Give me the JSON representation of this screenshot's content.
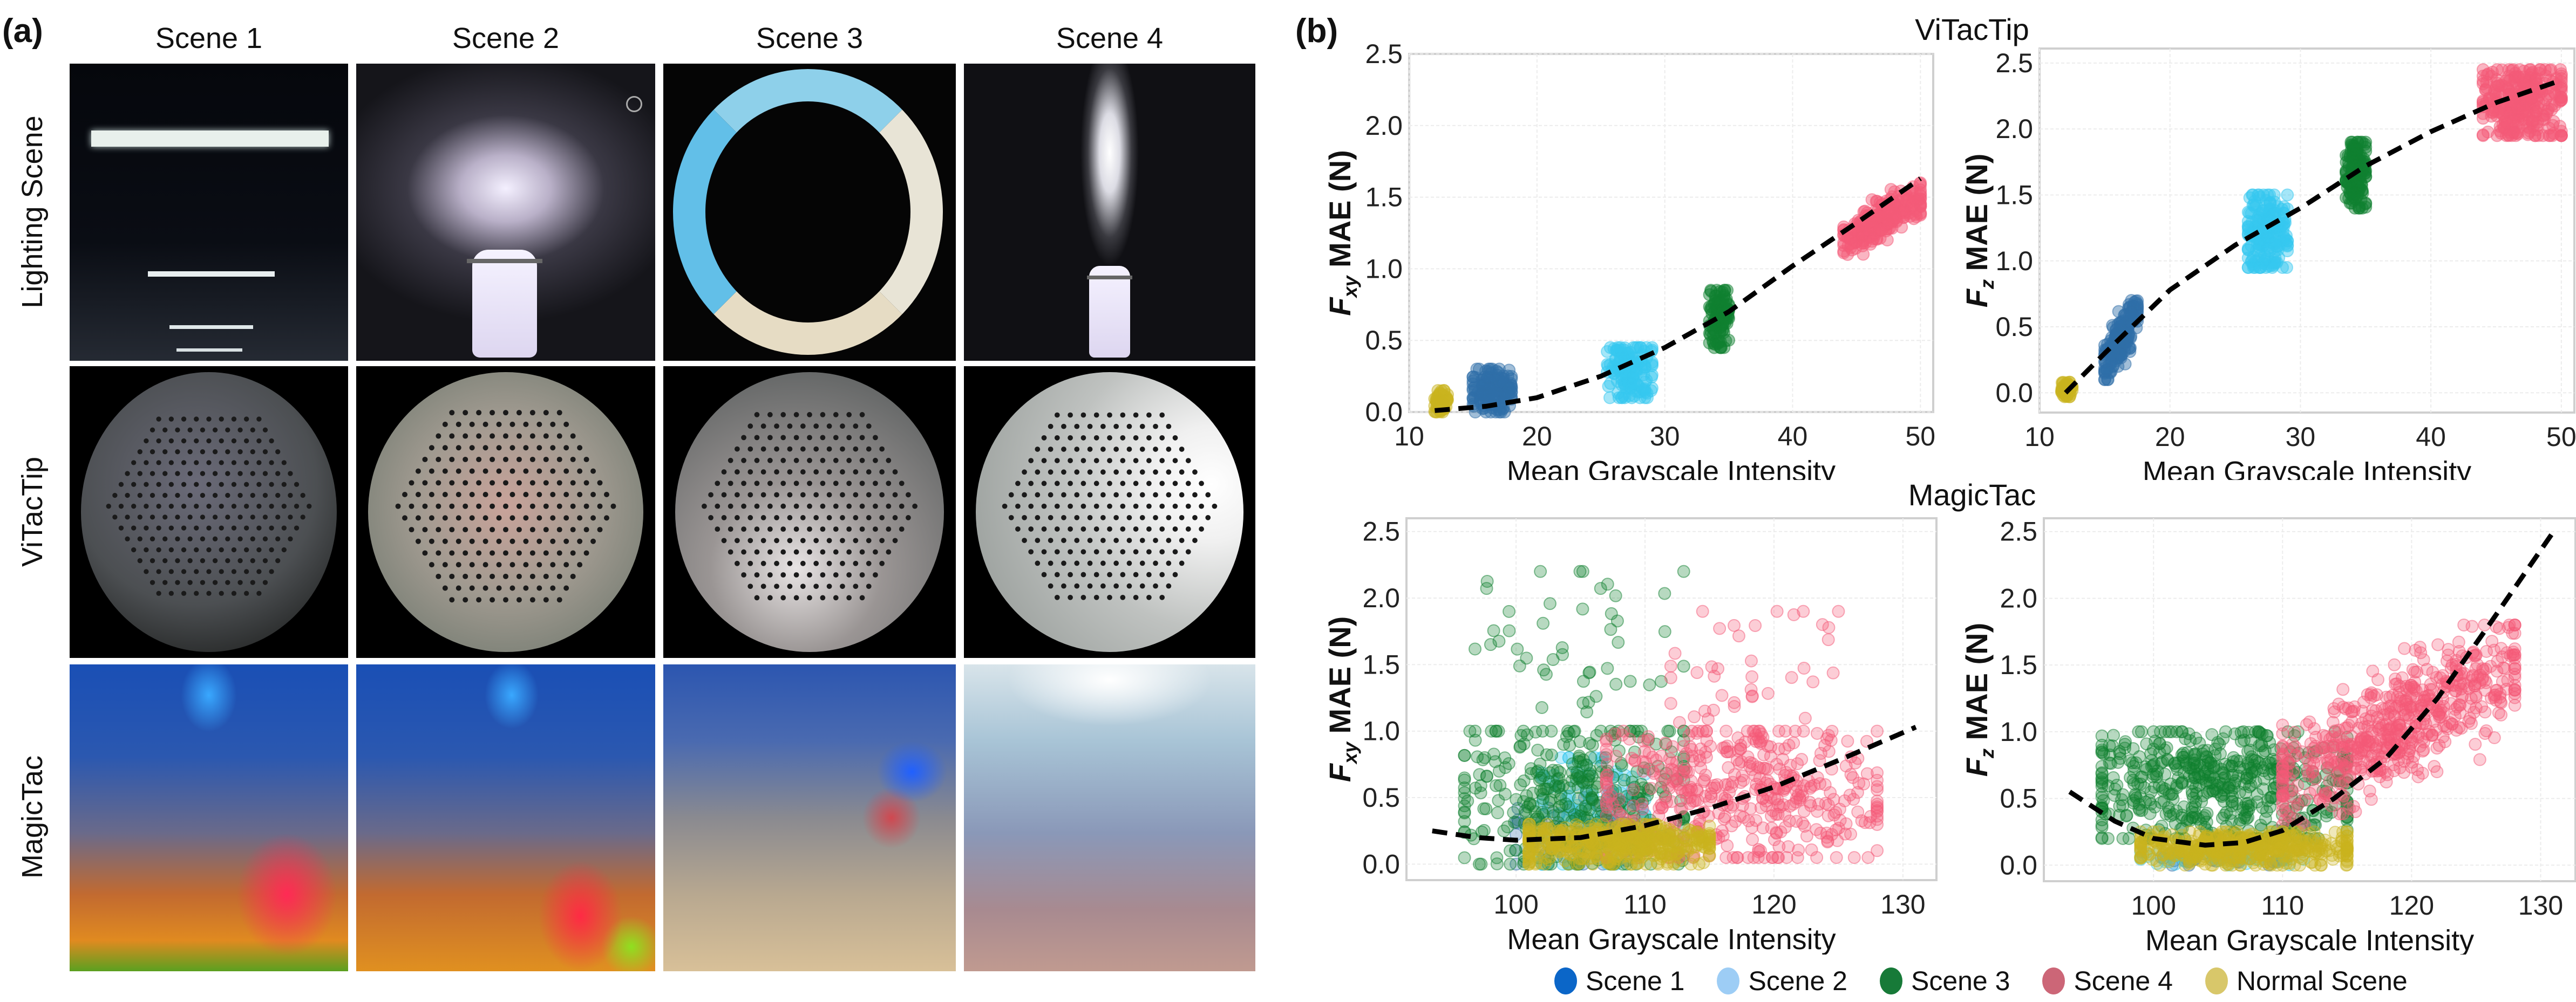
{
  "panel_a": {
    "label": "(a)",
    "columns": [
      "Scene 1",
      "Scene 2",
      "Scene 3",
      "Scene 4"
    ],
    "rows": [
      "Lighting Scene",
      "ViTacTip",
      "MagicTac"
    ]
  },
  "panel_b": {
    "label": "(b)",
    "group_titles": [
      "ViTacTip",
      "MagicTac"
    ]
  },
  "legend": [
    {
      "label": "Scene 1",
      "color": "#0b66c8"
    },
    {
      "label": "Scene 2",
      "color": "#9dcdf5"
    },
    {
      "label": "Scene 3",
      "color": "#177a38"
    },
    {
      "label": "Scene 4",
      "color": "#cc6677"
    },
    {
      "label": "Normal Scene",
      "color": "#d8c76a"
    }
  ],
  "series_colors": {
    "Scene 1": "#2f6ea8",
    "Scene 2": "#36c8f0",
    "Scene 3": "#0f8030",
    "Scene 4": "#f45a78",
    "Normal Scene": "#c9b41e"
  },
  "chart_data": [
    {
      "type": "scatter",
      "group": "ViTacTip",
      "xlabel": "Mean  Grayscale Intensity",
      "ylabel_main": "F",
      "ylabel_sub": "xy",
      "ylabel_rest": " MAE (N)",
      "xlim": [
        10,
        51
      ],
      "ylim": [
        0,
        2.5
      ],
      "xticks": [
        10,
        20,
        30,
        40,
        50
      ],
      "yticks": [
        "0.0",
        "0.5",
        "1.0",
        "1.5",
        "2.0",
        "2.5"
      ],
      "grid": true,
      "clusters": [
        {
          "series": "Normal Scene",
          "x": [
            12,
            13
          ],
          "y": [
            0,
            0.15
          ],
          "n": 60
        },
        {
          "series": "Scene 1",
          "x": [
            15,
            18
          ],
          "y": [
            0,
            0.3
          ],
          "n": 150
        },
        {
          "series": "Scene 2",
          "x": [
            25.5,
            29
          ],
          "y": [
            0.1,
            0.45
          ],
          "n": 150
        },
        {
          "series": "Scene 3",
          "x": [
            33.5,
            35
          ],
          "y": [
            0.45,
            0.85
          ],
          "n": 120
        },
        {
          "series": "Scene 4",
          "x": [
            44,
            50
          ],
          "y": [
            1.1,
            1.6
          ],
          "n": 250,
          "trend": true
        }
      ],
      "fit": [
        [
          12,
          0.01
        ],
        [
          16,
          0.04
        ],
        [
          20,
          0.1
        ],
        [
          25,
          0.25
        ],
        [
          30,
          0.45
        ],
        [
          35,
          0.7
        ],
        [
          40,
          1.02
        ],
        [
          45,
          1.32
        ],
        [
          50,
          1.63
        ]
      ]
    },
    {
      "type": "scatter",
      "group": "ViTacTip",
      "xlabel": "Mean  Grayscale Intensity",
      "ylabel_main": "F",
      "ylabel_sub": "z",
      "ylabel_rest": " MAE (N)",
      "xlim": [
        10,
        51
      ],
      "ylim": [
        -0.15,
        2.61
      ],
      "xticks": [
        10,
        20,
        30,
        40,
        50
      ],
      "yticks": [
        "0.0",
        "0.5",
        "1.0",
        "1.5",
        "2.0",
        "2.5"
      ],
      "grid": true,
      "clusters": [
        {
          "series": "Normal Scene",
          "x": [
            11.7,
            12.5
          ],
          "y": [
            -0.03,
            0.08
          ],
          "n": 60
        },
        {
          "series": "Scene 1",
          "x": [
            15,
            17.5
          ],
          "y": [
            0.1,
            0.7
          ],
          "n": 200,
          "trend": true
        },
        {
          "series": "Scene 2",
          "x": [
            26,
            29
          ],
          "y": [
            0.95,
            1.5
          ],
          "n": 200
        },
        {
          "series": "Scene 3",
          "x": [
            33.5,
            35
          ],
          "y": [
            1.4,
            1.9
          ],
          "n": 150
        },
        {
          "series": "Scene 4",
          "x": [
            44,
            50
          ],
          "y": [
            1.95,
            2.45
          ],
          "n": 300
        }
      ],
      "fit": [
        [
          12,
          0.0
        ],
        [
          15,
          0.3
        ],
        [
          20,
          0.78
        ],
        [
          25,
          1.12
        ],
        [
          30,
          1.4
        ],
        [
          35,
          1.72
        ],
        [
          40,
          1.98
        ],
        [
          45,
          2.2
        ],
        [
          50,
          2.37
        ]
      ]
    },
    {
      "type": "scatter",
      "group": "MagicTac",
      "xlabel": "Mean  Grayscale Intensity",
      "ylabel_main": "F",
      "ylabel_sub": "xy",
      "ylabel_rest": " MAE (N)",
      "xlim": [
        91.5,
        132.6
      ],
      "ylim": [
        -0.12,
        2.6
      ],
      "xticks": [
        100,
        110,
        120,
        130
      ],
      "yticks": [
        "0.0",
        "0.5",
        "1.0",
        "1.5",
        "2.0",
        "2.5"
      ],
      "grid": true,
      "clusters": [
        {
          "series": "Scene 1",
          "x": [
            100,
            110
          ],
          "y": [
            0,
            0.5
          ],
          "n": 60
        },
        {
          "series": "Scene 2",
          "x": [
            102,
            110
          ],
          "y": [
            0,
            0.8
          ],
          "n": 120
        },
        {
          "series": "Scene 3",
          "x": [
            96,
            113
          ],
          "y": [
            0,
            1.0
          ],
          "n": 350
        },
        {
          "series": "Scene 3",
          "x": [
            96,
            113
          ],
          "y": [
            1.0,
            2.2
          ],
          "n": 50
        },
        {
          "series": "Scene 4",
          "x": [
            107,
            128
          ],
          "y": [
            0.05,
            1.0
          ],
          "n": 450
        },
        {
          "series": "Scene 4",
          "x": [
            112,
            125
          ],
          "y": [
            1.0,
            1.9
          ],
          "n": 40
        },
        {
          "series": "Normal Scene",
          "x": [
            101,
            115
          ],
          "y": [
            0,
            0.3
          ],
          "n": 450
        }
      ],
      "fit": [
        [
          93.5,
          0.25
        ],
        [
          97,
          0.2
        ],
        [
          100,
          0.18
        ],
        [
          105,
          0.2
        ],
        [
          110,
          0.29
        ],
        [
          115,
          0.42
        ],
        [
          120,
          0.58
        ],
        [
          125,
          0.78
        ],
        [
          131,
          1.03
        ]
      ]
    },
    {
      "type": "scatter",
      "group": "MagicTac",
      "xlabel": "Mean  Grayscale Intensity",
      "ylabel_main": "F",
      "ylabel_sub": "z",
      "ylabel_rest": " MAE (N)",
      "xlim": [
        91.5,
        132.7
      ],
      "ylim": [
        -0.12,
        2.6
      ],
      "xticks": [
        100,
        110,
        120,
        130
      ],
      "yticks": [
        "0.0",
        "0.5",
        "1.0",
        "1.5",
        "2.0",
        "2.5"
      ],
      "grid": true,
      "clusters": [
        {
          "series": "Scene 1",
          "x": [
            99,
            110
          ],
          "y": [
            0,
            0.1
          ],
          "n": 30
        },
        {
          "series": "Scene 2",
          "x": [
            99,
            112
          ],
          "y": [
            0,
            0.12
          ],
          "n": 60
        },
        {
          "series": "Scene 3",
          "x": [
            96,
            115
          ],
          "y": [
            0.2,
            1.0
          ],
          "n": 550
        },
        {
          "series": "Scene 4",
          "x": [
            110,
            128
          ],
          "y": [
            0.3,
            1.8
          ],
          "n": 600,
          "trend": true
        },
        {
          "series": "Normal Scene",
          "x": [
            99,
            115
          ],
          "y": [
            0,
            0.25
          ],
          "n": 450
        }
      ],
      "fit": [
        [
          93.5,
          0.55
        ],
        [
          97,
          0.33
        ],
        [
          100,
          0.2
        ],
        [
          104,
          0.15
        ],
        [
          107,
          0.17
        ],
        [
          110,
          0.26
        ],
        [
          114,
          0.5
        ],
        [
          118,
          0.8
        ],
        [
          122,
          1.25
        ],
        [
          126,
          1.8
        ],
        [
          131,
          2.5
        ]
      ]
    }
  ]
}
